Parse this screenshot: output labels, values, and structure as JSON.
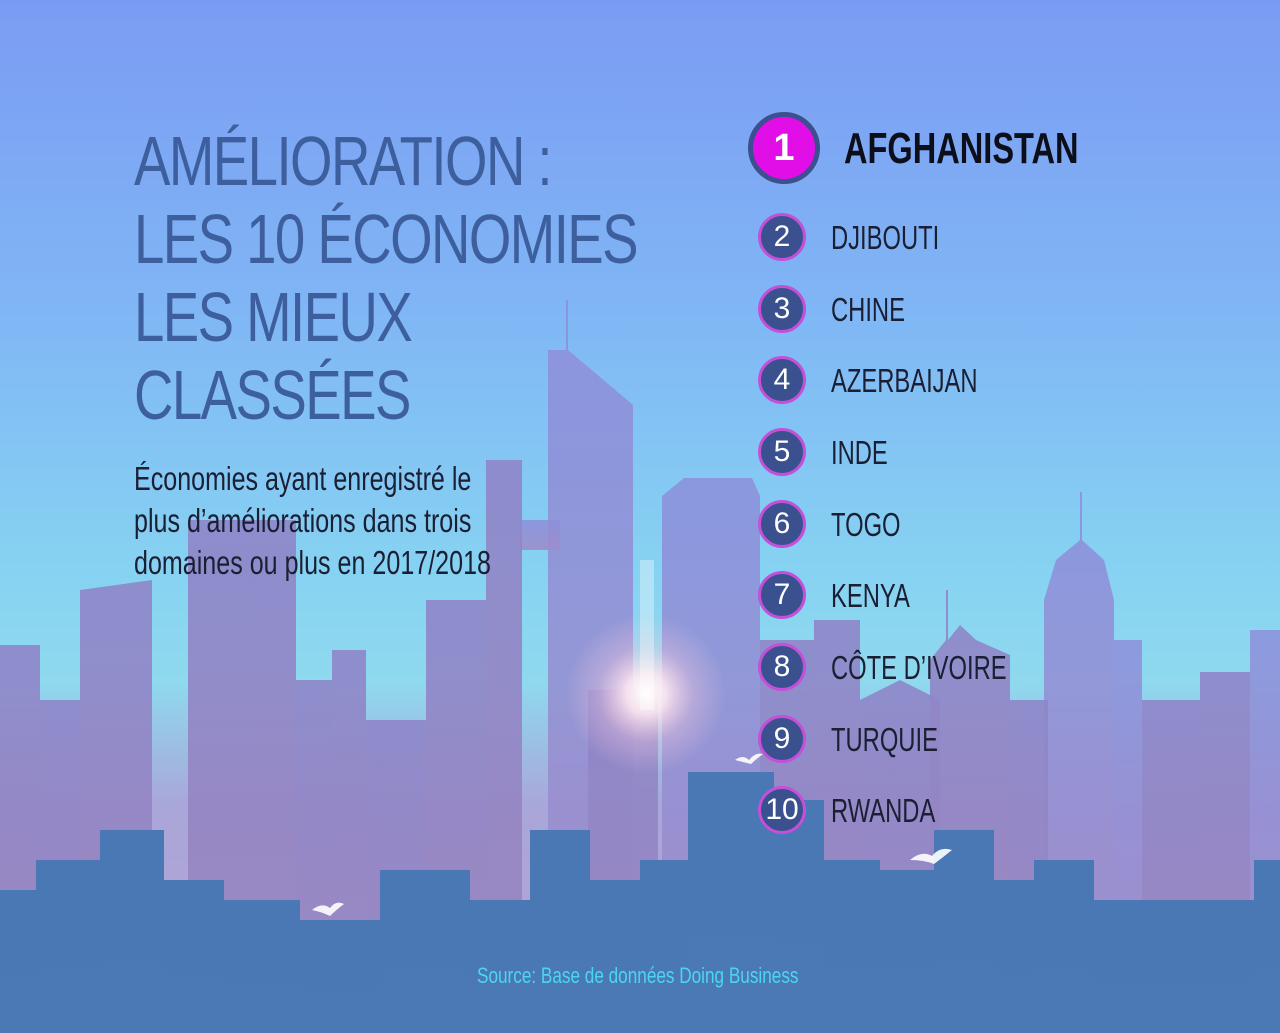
{
  "title": {
    "lines": [
      "AMÉLIORATION :",
      "LES 10 ÉCONOMIES",
      "LES MIEUX",
      "CLASSÉES"
    ]
  },
  "subtitle": {
    "lines": [
      "Économies ayant enregistré le",
      "plus d’améliorations dans trois",
      "domaines ou plus en 2017/2018"
    ]
  },
  "ranking": [
    {
      "rank": "1",
      "name": "AFGHANISTAN"
    },
    {
      "rank": "2",
      "name": "DJIBOUTI"
    },
    {
      "rank": "3",
      "name": "CHINE"
    },
    {
      "rank": "4",
      "name": "AZERBAIJAN"
    },
    {
      "rank": "5",
      "name": "INDE"
    },
    {
      "rank": "6",
      "name": "TOGO"
    },
    {
      "rank": "7",
      "name": "KENYA"
    },
    {
      "rank": "8",
      "name": "CÔTE D’IVOIRE"
    },
    {
      "rank": "9",
      "name": "TURQUIE"
    },
    {
      "rank": "10",
      "name": "RWANDA"
    }
  ],
  "source": "Source: Base de données Doing Business",
  "colors": {
    "title": "#3e5f9e",
    "highlight_circle": "#e20ee8",
    "circle_fill": "#3b508f",
    "circle_border": "#c44fd8",
    "source_text": "#4ad6ee"
  }
}
